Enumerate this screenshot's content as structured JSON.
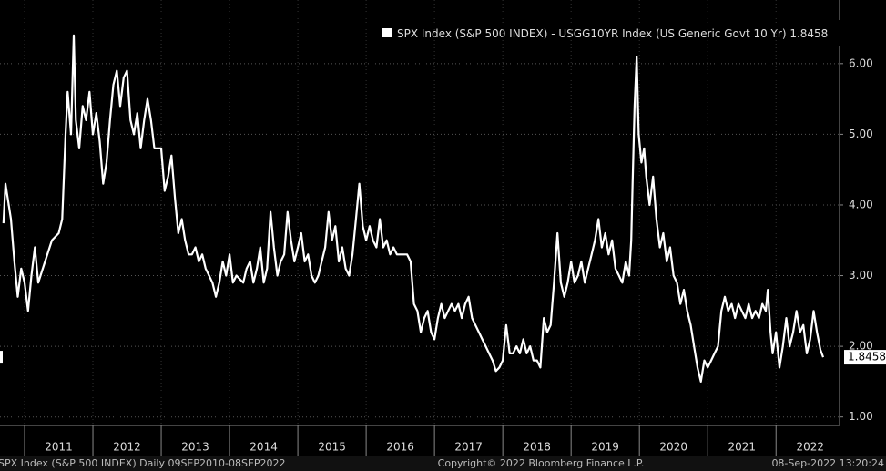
{
  "chart_data": {
    "type": "line",
    "series": [
      {
        "name": "SPX Index (S&P 500 INDEX) - USGG10YR Index (US Generic Govt 10 Yr)",
        "color": "#ffffff",
        "x": [
          2010.69,
          2010.72,
          2010.8,
          2010.85,
          2010.9,
          2010.95,
          2011.0,
          2011.05,
          2011.1,
          2011.15,
          2011.2,
          2011.3,
          2011.4,
          2011.5,
          2011.55,
          2011.6,
          2011.63,
          2011.68,
          2011.72,
          2011.75,
          2011.8,
          2011.85,
          2011.9,
          2011.95,
          2012.0,
          2012.05,
          2012.1,
          2012.15,
          2012.2,
          2012.25,
          2012.3,
          2012.35,
          2012.4,
          2012.45,
          2012.5,
          2012.55,
          2012.6,
          2012.65,
          2012.7,
          2012.75,
          2012.8,
          2012.85,
          2012.9,
          2013.0,
          2013.05,
          2013.1,
          2013.15,
          2013.2,
          2013.25,
          2013.3,
          2013.35,
          2013.4,
          2013.45,
          2013.5,
          2013.55,
          2013.6,
          2013.65,
          2013.7,
          2013.75,
          2013.8,
          2013.85,
          2013.9,
          2013.95,
          2014.0,
          2014.05,
          2014.1,
          2014.2,
          2014.25,
          2014.3,
          2014.35,
          2014.4,
          2014.45,
          2014.5,
          2014.55,
          2014.6,
          2014.65,
          2014.7,
          2014.75,
          2014.8,
          2014.85,
          2014.9,
          2014.95,
          2015.0,
          2015.05,
          2015.1,
          2015.15,
          2015.2,
          2015.25,
          2015.3,
          2015.35,
          2015.4,
          2015.45,
          2015.5,
          2015.55,
          2015.6,
          2015.65,
          2015.7,
          2015.75,
          2015.8,
          2015.85,
          2015.9,
          2015.95,
          2016.0,
          2016.05,
          2016.1,
          2016.15,
          2016.2,
          2016.25,
          2016.3,
          2016.35,
          2016.4,
          2016.45,
          2016.5,
          2016.55,
          2016.6,
          2016.65,
          2016.7,
          2016.75,
          2016.8,
          2016.85,
          2016.9,
          2016.95,
          2017.0,
          2017.05,
          2017.1,
          2017.15,
          2017.2,
          2017.25,
          2017.3,
          2017.35,
          2017.4,
          2017.45,
          2017.5,
          2017.55,
          2017.6,
          2017.65,
          2017.7,
          2017.75,
          2017.8,
          2017.85,
          2017.9,
          2017.95,
          2018.0,
          2018.05,
          2018.1,
          2018.15,
          2018.2,
          2018.25,
          2018.3,
          2018.35,
          2018.4,
          2018.45,
          2018.5,
          2018.55,
          2018.6,
          2018.65,
          2018.7,
          2018.75,
          2018.8,
          2018.85,
          2018.9,
          2018.95,
          2019.0,
          2019.05,
          2019.1,
          2019.15,
          2019.2,
          2019.25,
          2019.3,
          2019.35,
          2019.4,
          2019.45,
          2019.5,
          2019.55,
          2019.6,
          2019.65,
          2019.7,
          2019.75,
          2019.8,
          2019.85,
          2019.88,
          2019.9,
          2019.93,
          2019.96,
          2019.99,
          2020.03,
          2020.07,
          2020.1,
          2020.15,
          2020.2,
          2020.25,
          2020.3,
          2020.35,
          2020.4,
          2020.45,
          2020.5,
          2020.55,
          2020.6,
          2020.65,
          2020.7,
          2020.75,
          2020.8,
          2020.85,
          2020.9,
          2020.95,
          2021.0,
          2021.05,
          2021.1,
          2021.15,
          2021.2,
          2021.25,
          2021.3,
          2021.35,
          2021.4,
          2021.45,
          2021.5,
          2021.55,
          2021.6,
          2021.65,
          2021.7,
          2021.75,
          2021.8,
          2021.85,
          2021.88,
          2021.92,
          2021.95,
          2022.0,
          2022.05,
          2022.1,
          2022.15,
          2022.2,
          2022.25,
          2022.3,
          2022.35,
          2022.4,
          2022.45,
          2022.5,
          2022.55,
          2022.6,
          2022.65,
          2022.69
        ],
        "values": [
          3.74,
          4.3,
          3.8,
          3.2,
          2.7,
          3.1,
          2.9,
          2.5,
          3.0,
          3.4,
          2.9,
          3.2,
          3.5,
          3.6,
          3.8,
          5.0,
          5.6,
          5.0,
          6.4,
          5.2,
          4.8,
          5.4,
          5.2,
          5.6,
          5.0,
          5.3,
          4.9,
          4.3,
          4.6,
          5.2,
          5.7,
          5.9,
          5.4,
          5.8,
          5.9,
          5.2,
          5.0,
          5.3,
          4.8,
          5.2,
          5.5,
          5.2,
          4.8,
          4.8,
          4.2,
          4.4,
          4.7,
          4.1,
          3.6,
          3.8,
          3.5,
          3.3,
          3.3,
          3.4,
          3.2,
          3.3,
          3.1,
          3.0,
          2.9,
          2.7,
          2.9,
          3.2,
          3.0,
          3.3,
          2.9,
          3.0,
          2.9,
          3.1,
          3.2,
          2.9,
          3.1,
          3.4,
          2.9,
          3.1,
          3.9,
          3.4,
          3.0,
          3.2,
          3.3,
          3.9,
          3.5,
          3.2,
          3.4,
          3.6,
          3.2,
          3.3,
          3.0,
          2.9,
          3.0,
          3.2,
          3.4,
          3.9,
          3.5,
          3.7,
          3.2,
          3.4,
          3.1,
          3.0,
          3.3,
          3.8,
          4.3,
          3.7,
          3.5,
          3.7,
          3.5,
          3.4,
          3.8,
          3.4,
          3.5,
          3.3,
          3.4,
          3.3,
          3.3,
          3.3,
          3.3,
          3.2,
          2.6,
          2.5,
          2.2,
          2.4,
          2.5,
          2.2,
          2.1,
          2.4,
          2.6,
          2.4,
          2.5,
          2.6,
          2.5,
          2.6,
          2.4,
          2.6,
          2.7,
          2.4,
          2.3,
          2.2,
          2.1,
          2.0,
          1.9,
          1.8,
          1.65,
          1.7,
          1.8,
          2.3,
          1.9,
          1.9,
          2.0,
          1.9,
          2.1,
          1.9,
          2.0,
          1.8,
          1.8,
          1.7,
          2.4,
          2.2,
          2.3,
          2.9,
          3.6,
          2.9,
          2.7,
          2.9,
          3.2,
          2.9,
          3.0,
          3.2,
          2.9,
          3.1,
          3.3,
          3.5,
          3.8,
          3.4,
          3.6,
          3.3,
          3.5,
          3.1,
          3.0,
          2.9,
          3.2,
          3.0,
          3.5,
          4.3,
          5.4,
          6.1,
          5.0,
          4.6,
          4.8,
          4.4,
          4.0,
          4.4,
          3.8,
          3.4,
          3.6,
          3.2,
          3.4,
          3.0,
          2.9,
          2.6,
          2.8,
          2.5,
          2.3,
          2.0,
          1.7,
          1.5,
          1.8,
          1.7,
          1.8,
          1.9,
          2.0,
          2.5,
          2.7,
          2.5,
          2.6,
          2.4,
          2.6,
          2.5,
          2.4,
          2.6,
          2.4,
          2.5,
          2.4,
          2.6,
          2.5,
          2.8,
          2.2,
          1.9,
          2.2,
          1.7,
          2.0,
          2.4,
          2.0,
          2.2,
          2.5,
          2.2,
          2.3,
          1.9,
          2.1,
          2.5,
          2.2,
          1.95,
          1.8458
        ]
      }
    ],
    "last_value": 1.8458,
    "xlim": [
      2010.64,
      2022.93
    ],
    "xticks": [
      {
        "value": 2011.5,
        "label": "2011"
      },
      {
        "value": 2012.5,
        "label": "2012"
      },
      {
        "value": 2013.5,
        "label": "2013"
      },
      {
        "value": 2014.5,
        "label": "2014"
      },
      {
        "value": 2015.5,
        "label": "2015"
      },
      {
        "value": 2016.5,
        "label": "2016"
      },
      {
        "value": 2017.5,
        "label": "2017"
      },
      {
        "value": 2018.5,
        "label": "2018"
      },
      {
        "value": 2019.5,
        "label": "2019"
      },
      {
        "value": 2020.5,
        "label": "2020"
      },
      {
        "value": 2021.5,
        "label": "2021"
      },
      {
        "value": 2022.5,
        "label": "2022"
      }
    ],
    "ylim": [
      0.88,
      6.9
    ],
    "yticks": [
      {
        "value": 1,
        "label": "1.00"
      },
      {
        "value": 2,
        "label": "2.00"
      },
      {
        "value": 3,
        "label": "3.00"
      },
      {
        "value": 4,
        "label": "4.00"
      },
      {
        "value": 5,
        "label": "5.00"
      },
      {
        "value": 6,
        "label": "6.00"
      }
    ],
    "grid": true,
    "footer": {
      "left": "SPX Index (S&P 500 INDEX)  Daily 09SEP2010-08SEP2022",
      "center": "Copyright© 2022 Bloomberg Finance L.P.",
      "right": "08-Sep-2022 13:20:24"
    }
  }
}
